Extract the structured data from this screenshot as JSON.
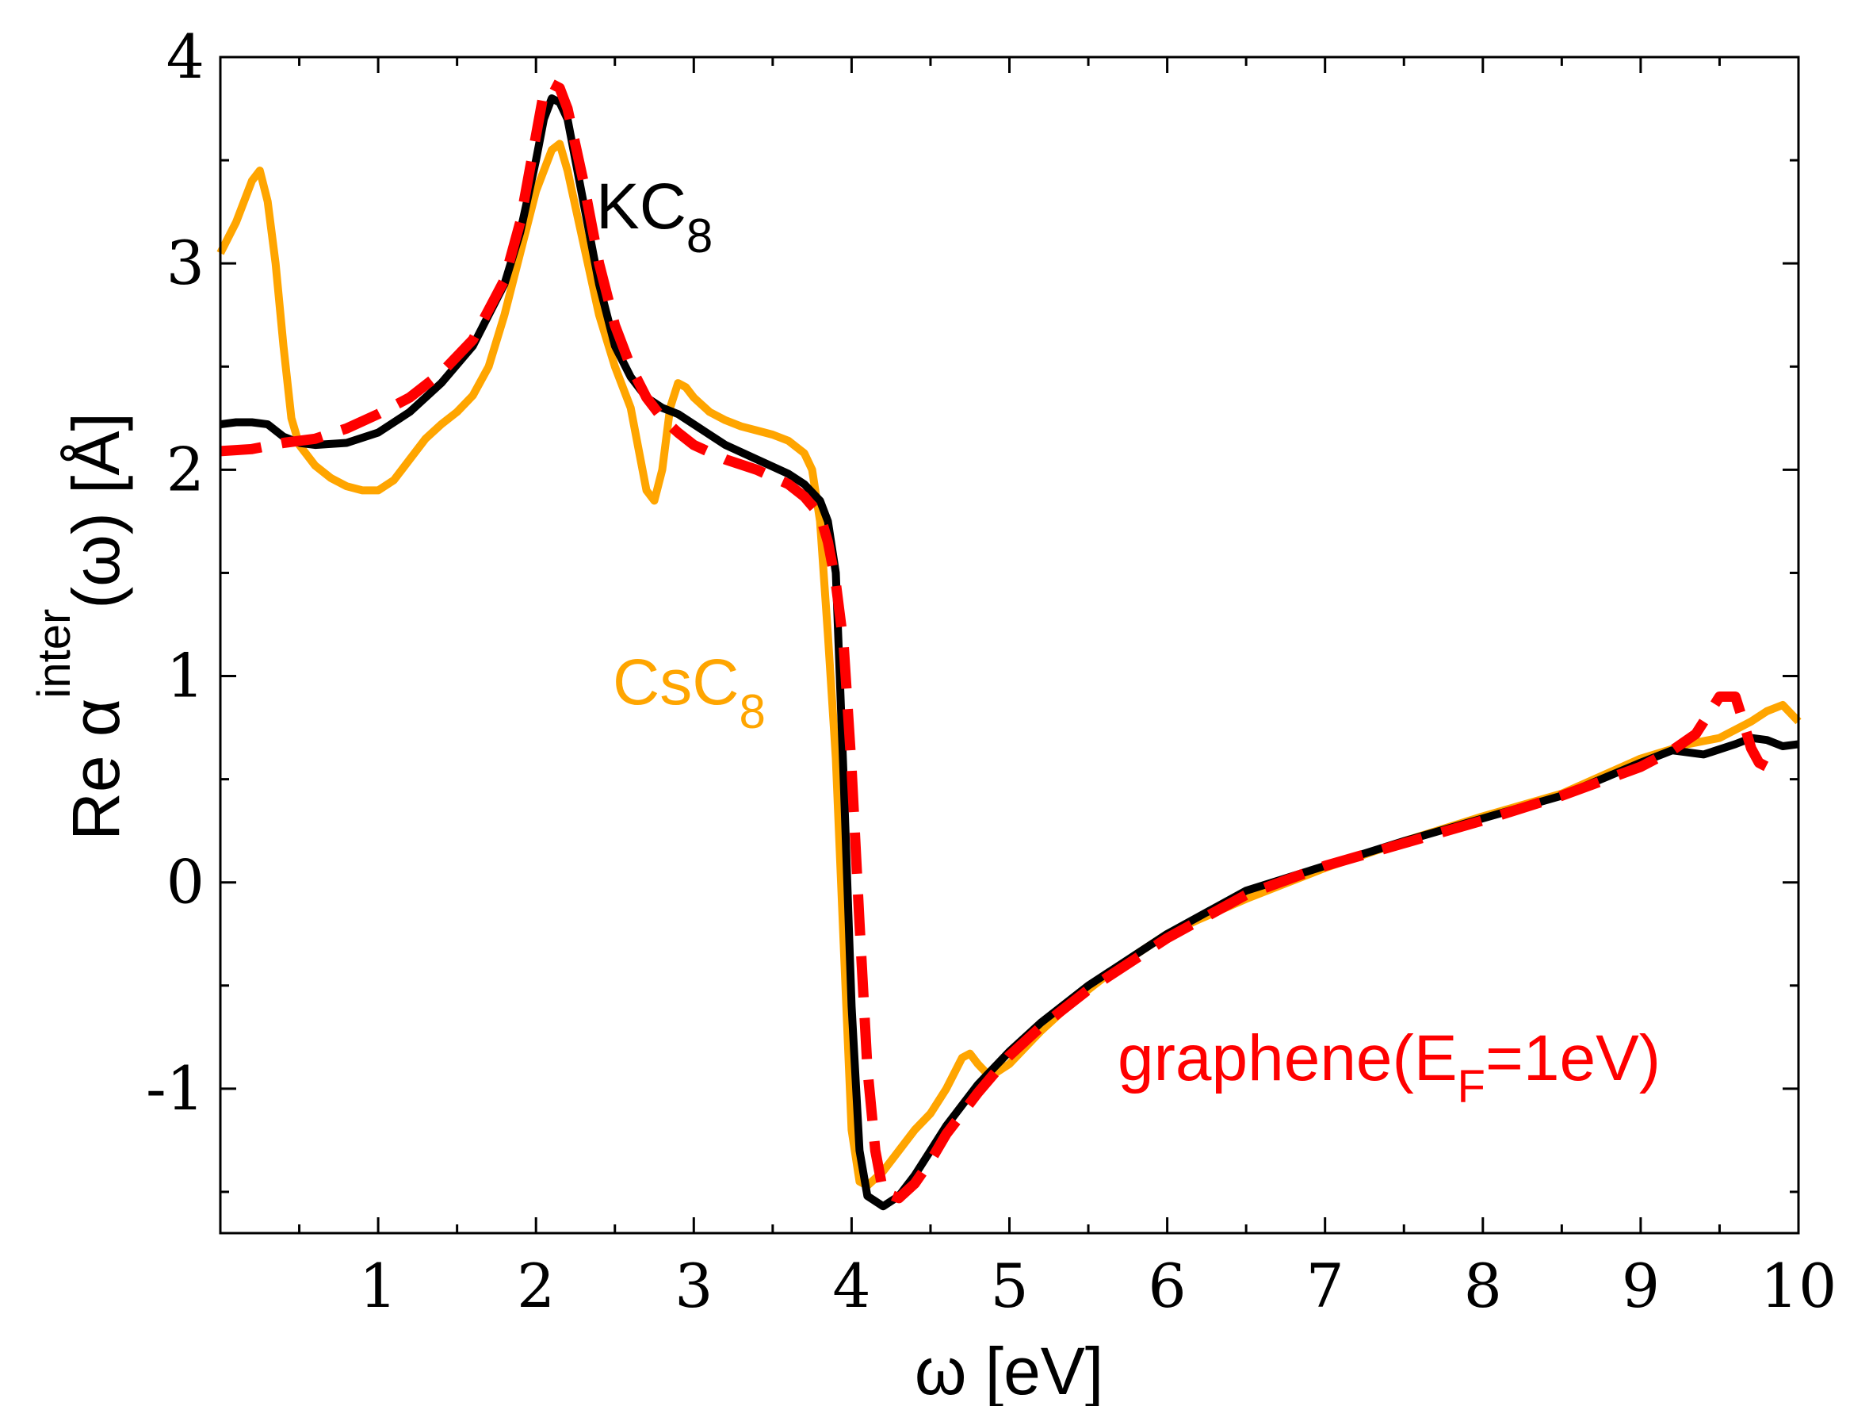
{
  "chart_data": {
    "type": "line",
    "title": "",
    "xlabel": "ω [eV]",
    "ylabel": {
      "prefix": "Re α",
      "superscript": "inter",
      "suffix": "(ω) [Å]"
    },
    "xlim": [
      0,
      10
    ],
    "ylim": [
      -1.7,
      4
    ],
    "x_ticks": [
      1,
      2,
      3,
      4,
      5,
      6,
      7,
      8,
      9,
      10
    ],
    "x_tick_labels": [
      "1",
      "2",
      "3",
      "4",
      "5",
      "6",
      "7",
      "8",
      "9",
      "10"
    ],
    "y_ticks": [
      -1,
      0,
      1,
      2,
      3,
      4
    ],
    "y_tick_labels": [
      "-1",
      "0",
      "1",
      "2",
      "3",
      "4"
    ],
    "grid": false,
    "annotations": [
      {
        "id": "kc8",
        "base": "KC",
        "sub": "8",
        "after": "",
        "color": "#000000"
      },
      {
        "id": "csc8",
        "base": "CsC",
        "sub": "8",
        "after": "",
        "color": "#FFA500"
      },
      {
        "id": "graphene",
        "base": "graphene(E",
        "sub": "F",
        "after": "=1eV)",
        "color": "#FF0000"
      }
    ],
    "series": [
      {
        "name": "CsC8",
        "color": "#FFA500",
        "style": "solid",
        "x": [
          0.0,
          0.1,
          0.2,
          0.25,
          0.3,
          0.35,
          0.4,
          0.45,
          0.5,
          0.6,
          0.7,
          0.8,
          0.9,
          1.0,
          1.1,
          1.2,
          1.3,
          1.4,
          1.5,
          1.6,
          1.7,
          1.8,
          1.9,
          2.0,
          2.1,
          2.15,
          2.2,
          2.3,
          2.4,
          2.5,
          2.6,
          2.65,
          2.7,
          2.75,
          2.8,
          2.85,
          2.9,
          2.95,
          3.0,
          3.1,
          3.2,
          3.3,
          3.4,
          3.5,
          3.6,
          3.7,
          3.75,
          3.8,
          3.85,
          3.9,
          3.95,
          4.0,
          4.05,
          4.1,
          4.2,
          4.3,
          4.4,
          4.5,
          4.6,
          4.7,
          4.75,
          4.8,
          4.85,
          4.9,
          5.0,
          5.2,
          5.4,
          5.6,
          5.8,
          6.0,
          6.2,
          6.5,
          7.0,
          7.5,
          8.0,
          8.5,
          9.0,
          9.3,
          9.5,
          9.7,
          9.8,
          9.9,
          10.0
        ],
        "y": [
          3.05,
          3.2,
          3.4,
          3.45,
          3.3,
          3.0,
          2.6,
          2.25,
          2.12,
          2.02,
          1.96,
          1.92,
          1.9,
          1.9,
          1.95,
          2.05,
          2.15,
          2.22,
          2.28,
          2.36,
          2.5,
          2.75,
          3.05,
          3.35,
          3.55,
          3.58,
          3.45,
          3.1,
          2.75,
          2.5,
          2.3,
          2.1,
          1.9,
          1.85,
          2.0,
          2.3,
          2.42,
          2.4,
          2.35,
          2.28,
          2.24,
          2.21,
          2.19,
          2.17,
          2.14,
          2.08,
          2.0,
          1.75,
          1.2,
          0.6,
          -0.3,
          -1.2,
          -1.45,
          -1.47,
          -1.4,
          -1.3,
          -1.2,
          -1.12,
          -1.0,
          -0.85,
          -0.83,
          -0.88,
          -0.92,
          -0.93,
          -0.88,
          -0.72,
          -0.58,
          -0.46,
          -0.35,
          -0.25,
          -0.18,
          -0.08,
          0.07,
          0.2,
          0.32,
          0.43,
          0.6,
          0.67,
          0.7,
          0.78,
          0.83,
          0.86,
          0.78
        ]
      },
      {
        "name": "KC8",
        "color": "#000000",
        "style": "solid",
        "x": [
          0.0,
          0.1,
          0.2,
          0.3,
          0.4,
          0.5,
          0.6,
          0.8,
          1.0,
          1.2,
          1.4,
          1.6,
          1.8,
          1.9,
          2.0,
          2.05,
          2.1,
          2.15,
          2.2,
          2.3,
          2.4,
          2.5,
          2.6,
          2.7,
          2.8,
          2.9,
          3.0,
          3.2,
          3.4,
          3.6,
          3.7,
          3.8,
          3.85,
          3.9,
          3.95,
          4.0,
          4.05,
          4.1,
          4.2,
          4.3,
          4.4,
          4.5,
          4.6,
          4.8,
          5.0,
          5.2,
          5.5,
          6.0,
          6.5,
          7.0,
          7.5,
          8.0,
          8.5,
          9.0,
          9.2,
          9.4,
          9.6,
          9.7,
          9.8,
          9.9,
          10.0
        ],
        "y": [
          2.22,
          2.23,
          2.23,
          2.22,
          2.16,
          2.13,
          2.12,
          2.13,
          2.18,
          2.28,
          2.42,
          2.6,
          2.9,
          3.15,
          3.5,
          3.7,
          3.8,
          3.78,
          3.7,
          3.3,
          2.9,
          2.6,
          2.45,
          2.35,
          2.3,
          2.27,
          2.22,
          2.12,
          2.05,
          1.98,
          1.93,
          1.85,
          1.75,
          1.5,
          0.5,
          -0.6,
          -1.3,
          -1.52,
          -1.57,
          -1.52,
          -1.42,
          -1.3,
          -1.18,
          -0.98,
          -0.82,
          -0.68,
          -0.5,
          -0.25,
          -0.04,
          0.08,
          0.2,
          0.31,
          0.42,
          0.58,
          0.64,
          0.62,
          0.67,
          0.7,
          0.69,
          0.66,
          0.67
        ]
      },
      {
        "name": "graphene(E_F=1eV)",
        "color": "#FF0000",
        "style": "dashed",
        "x": [
          0.0,
          0.2,
          0.4,
          0.6,
          0.8,
          1.0,
          1.2,
          1.4,
          1.6,
          1.8,
          1.9,
          2.0,
          2.05,
          2.1,
          2.15,
          2.2,
          2.3,
          2.4,
          2.5,
          2.6,
          2.7,
          2.8,
          2.9,
          3.0,
          3.2,
          3.4,
          3.6,
          3.7,
          3.8,
          3.85,
          3.9,
          3.95,
          4.0,
          4.05,
          4.1,
          4.15,
          4.2,
          4.3,
          4.4,
          4.5,
          4.6,
          4.8,
          5.0,
          5.2,
          5.5,
          6.0,
          6.5,
          7.0,
          7.5,
          8.0,
          8.5,
          9.0,
          9.2,
          9.35,
          9.45,
          9.5,
          9.6,
          9.65,
          9.7,
          9.75,
          9.8,
          9.9
        ],
        "y": [
          2.09,
          2.1,
          2.13,
          2.15,
          2.2,
          2.27,
          2.35,
          2.47,
          2.63,
          2.92,
          3.2,
          3.62,
          3.83,
          3.87,
          3.85,
          3.75,
          3.4,
          3.0,
          2.7,
          2.5,
          2.35,
          2.25,
          2.18,
          2.12,
          2.05,
          2.0,
          1.93,
          1.87,
          1.78,
          1.65,
          1.45,
          1.15,
          0.55,
          -0.2,
          -0.9,
          -1.3,
          -1.5,
          -1.53,
          -1.46,
          -1.35,
          -1.22,
          -1.02,
          -0.84,
          -0.7,
          -0.52,
          -0.27,
          -0.06,
          0.08,
          0.19,
          0.3,
          0.42,
          0.56,
          0.64,
          0.72,
          0.84,
          0.9,
          0.9,
          0.78,
          0.65,
          0.58,
          0.56,
          0.55
        ]
      }
    ]
  }
}
